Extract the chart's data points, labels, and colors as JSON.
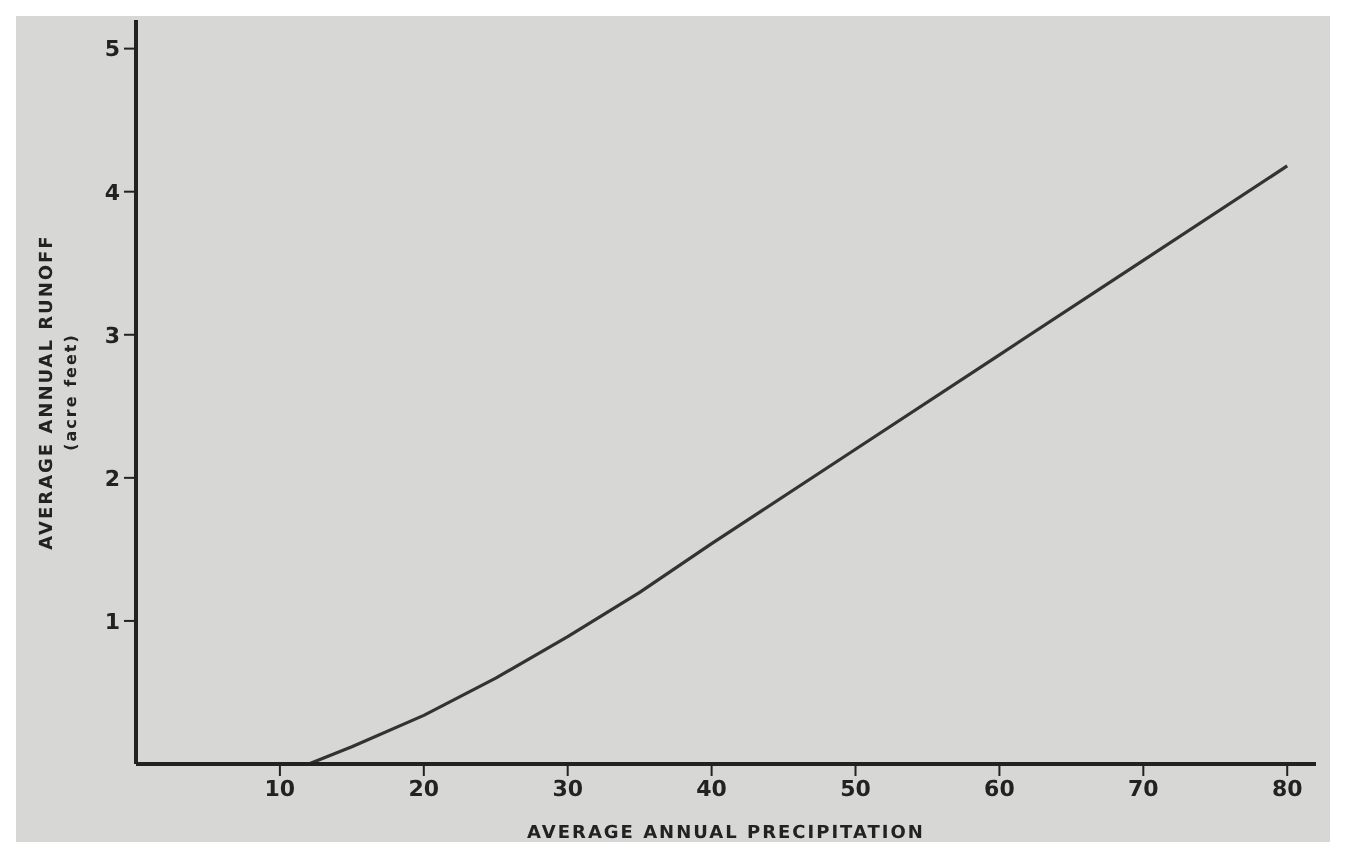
{
  "chart_data": {
    "type": "line",
    "xlabel": "AVERAGE ANNUAL PRECIPITATION",
    "ylabel": "AVERAGE ANNUAL RUNOFF\n(acre feet)",
    "x": [
      12,
      15,
      20,
      25,
      30,
      35,
      40,
      50,
      60,
      70,
      80
    ],
    "series": [
      {
        "color": "#333333",
        "values": [
          0,
          0.12,
          0.34,
          0.6,
          0.89,
          1.2,
          1.54,
          2.2,
          2.86,
          3.52,
          4.18
        ]
      }
    ],
    "xlim": [
      0,
      82
    ],
    "xticks": [
      10,
      20,
      30,
      40,
      50,
      60,
      70,
      80
    ],
    "ylim": [
      0,
      5.2
    ],
    "yticks": [
      1,
      2,
      3,
      4,
      5
    ],
    "grid": false,
    "legend": false,
    "marker": "none",
    "line_style": "solid"
  }
}
